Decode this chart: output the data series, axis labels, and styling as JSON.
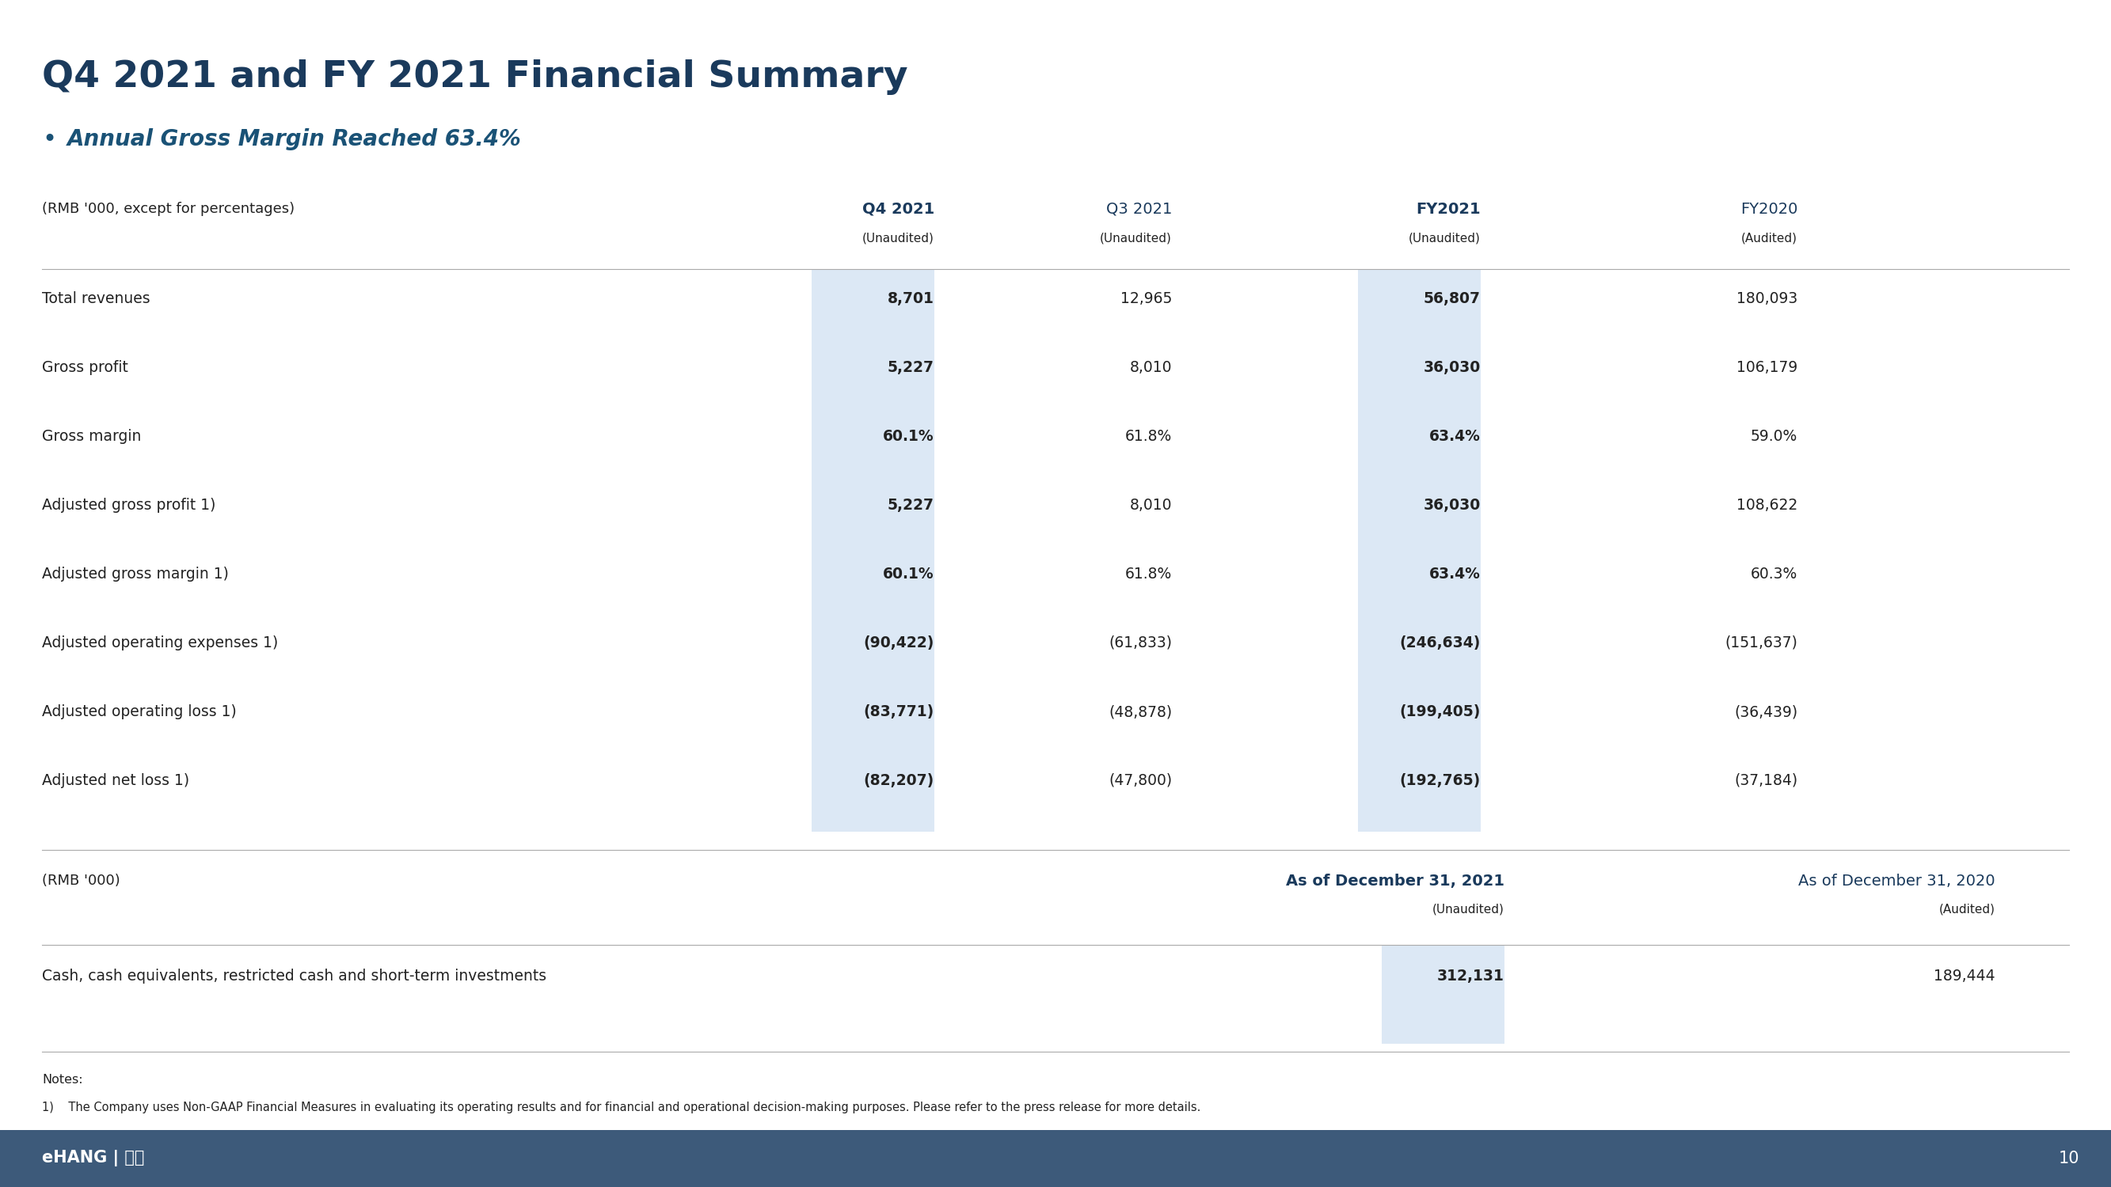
{
  "title": "Q4 2021 and FY 2021 Financial Summary",
  "subtitle": "Annual Gross Margin Reached 63.4%",
  "bg_color": "#ffffff",
  "title_color": "#1a3a5c",
  "subtitle_color": "#1a5276",
  "footer_bg": "#3d5a7a",
  "footer_text_color": "#ffffff",
  "footer_logo": "eHANG | 亿航",
  "footer_page": "10",
  "header_label": "(RMB '000, except for percentages)",
  "col_headers": [
    "Q4 2021",
    "Q3 2021",
    "FY2021",
    "FY2020"
  ],
  "col_subheaders": [
    "(Unaudited)",
    "(Unaudited)",
    "(Unaudited)",
    "(Audited)"
  ],
  "highlight_cols": [
    0,
    2
  ],
  "highlight_color": "#dce8f5",
  "rows": [
    {
      "label": "Total revenues",
      "values": [
        "8,701",
        "12,965",
        "56,807",
        "180,093"
      ],
      "bold_cols": [
        0,
        2
      ]
    },
    {
      "label": "Gross profit",
      "values": [
        "5,227",
        "8,010",
        "36,030",
        "106,179"
      ],
      "bold_cols": [
        0,
        2
      ]
    },
    {
      "label": "Gross margin",
      "values": [
        "60.1%",
        "61.8%",
        "63.4%",
        "59.0%"
      ],
      "bold_cols": [
        0,
        2
      ]
    },
    {
      "label": "Adjusted gross profit 1)",
      "values": [
        "5,227",
        "8,010",
        "36,030",
        "108,622"
      ],
      "bold_cols": [
        0,
        2
      ]
    },
    {
      "label": "Adjusted gross margin 1)",
      "values": [
        "60.1%",
        "61.8%",
        "63.4%",
        "60.3%"
      ],
      "bold_cols": [
        0,
        2
      ]
    },
    {
      "label": "Adjusted operating expenses 1)",
      "values": [
        "(90,422)",
        "(61,833)",
        "(246,634)",
        "(151,637)"
      ],
      "bold_cols": [
        0,
        2
      ]
    },
    {
      "label": "Adjusted operating loss 1)",
      "values": [
        "(83,771)",
        "(48,878)",
        "(199,405)",
        "(36,439)"
      ],
      "bold_cols": [
        0,
        2
      ]
    },
    {
      "label": "Adjusted net loss 1)",
      "values": [
        "(82,207)",
        "(47,800)",
        "(192,765)",
        "(37,184)"
      ],
      "bold_cols": [
        0,
        2
      ]
    }
  ],
  "section2_label": "(RMB '000)",
  "section2_col_headers": [
    "As of December 31, 2021",
    "As of December 31, 2020"
  ],
  "section2_col_subheaders": [
    "(Unaudited)",
    "(Audited)"
  ],
  "section2_rows": [
    {
      "label": "Cash, cash equivalents, restricted cash and short-term investments",
      "values": [
        "312,131",
        "189,444"
      ],
      "bold_cols": [
        0
      ]
    }
  ],
  "notes_title": "Notes:",
  "notes_line": "1)    The Company uses Non-GAAP Financial Measures in evaluating its operating results and for financial and operational decision-making purposes. Please refer to the press release for more details.",
  "text_color": "#222222",
  "dark_blue": "#1a3a5c",
  "line_color": "#aaaaaa"
}
